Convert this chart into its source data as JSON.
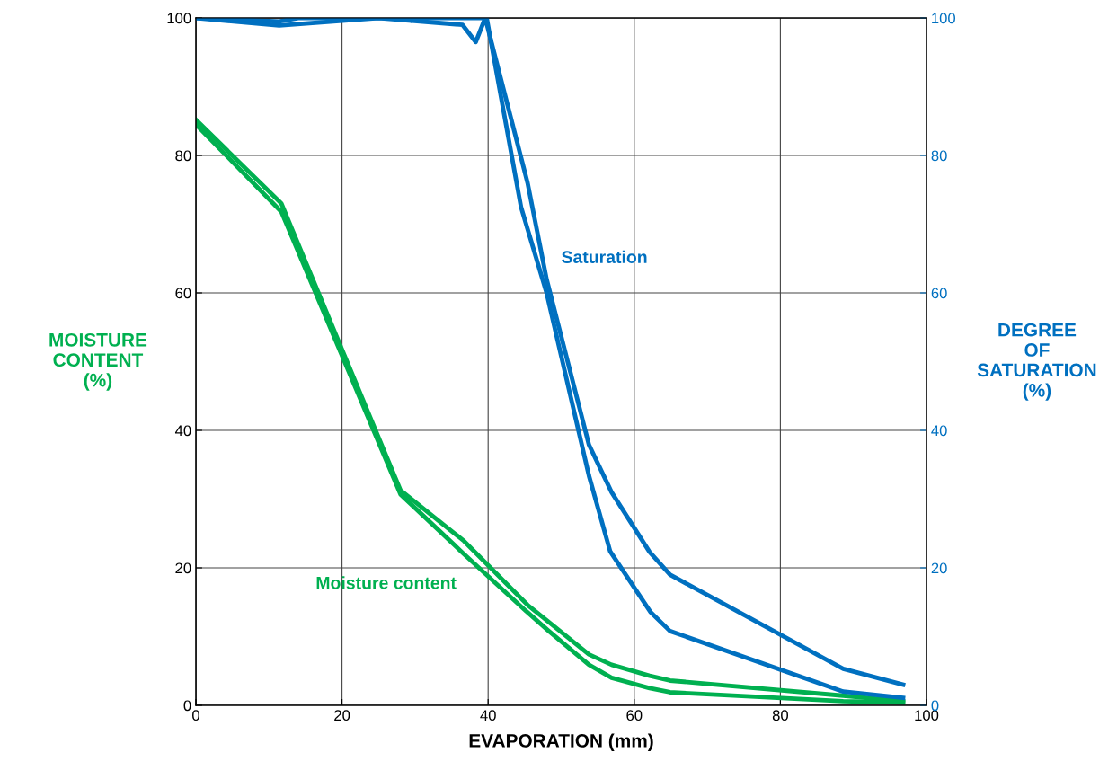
{
  "chart_data": {
    "type": "line",
    "xlabel": "EVAPORATION (mm)",
    "ylabel": "MOISTURE\nCONTENT\n(%)",
    "y2label": "DEGREE\nOF\nSATURATION\n(%)",
    "xlim": [
      0,
      100
    ],
    "xticks": [
      0,
      20,
      40,
      60,
      80,
      100
    ],
    "ylim": [
      0,
      100
    ],
    "yticks": [
      0,
      20,
      40,
      60,
      80,
      100
    ],
    "y2lim": [
      0,
      100
    ],
    "y2ticks": [
      0,
      20,
      40,
      60,
      80,
      100
    ],
    "grid": true,
    "legend": false,
    "marker": "none",
    "line_style": "solid",
    "series": [
      {
        "color": "#00b050",
        "x": [
          0,
          11.7,
          28,
          36.7,
          45.4,
          48.2,
          53.8,
          56.9,
          62.1,
          64.9,
          88.6,
          96.8
        ],
        "values": [
          85.2,
          73,
          31.3,
          23.9,
          14.6,
          12.2,
          7.4,
          5.9,
          4.3,
          3.6,
          1.4,
          0.6
        ]
      },
      {
        "color": "#00b050",
        "x": [
          0,
          11.7,
          28,
          36.5,
          45.2,
          48.2,
          53.8,
          56.9,
          62.1,
          64.9,
          88.6,
          96.8
        ],
        "values": [
          84.5,
          71.8,
          30.7,
          22.2,
          13.7,
          10.9,
          5.9,
          4,
          2.5,
          1.9,
          0.6,
          0.4
        ]
      },
      {
        "color": "#0070c0",
        "axis": "y2",
        "x": [
          0,
          11.4,
          25,
          36.5,
          38.3,
          39.6,
          45.4,
          48,
          53.8,
          56.9,
          62.1,
          64.9,
          88.6,
          96.8
        ],
        "values": [
          100,
          98.9,
          100,
          99,
          96.5,
          100,
          76,
          62,
          37.9,
          31,
          22.3,
          19,
          5.3,
          3
        ]
      },
      {
        "color": "#0070c0",
        "axis": "y2",
        "x": [
          0,
          11.4,
          14,
          28.5,
          29.5,
          30,
          39.8,
          44.5,
          48,
          53.8,
          56.7,
          62.2,
          64.9,
          88.6,
          96.8
        ],
        "values": [
          100,
          99.5,
          100,
          100,
          99.6,
          100,
          100,
          72.5,
          60,
          33.4,
          22.4,
          13.6,
          10.8,
          2,
          1.1
        ]
      }
    ],
    "annotations": [
      "Saturation",
      "Moisture content"
    ]
  }
}
